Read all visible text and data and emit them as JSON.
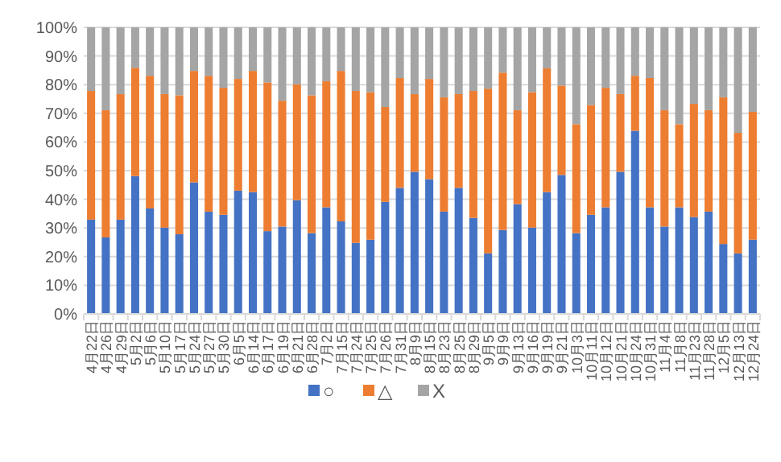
{
  "chart_data": {
    "type": "bar",
    "stacked": true,
    "grid": "y",
    "legend": "bottom",
    "categories": [
      "4月22日",
      "4月26日",
      "4月29日",
      "5月2日",
      "5月6日",
      "5月10日",
      "5月17日",
      "5月24日",
      "5月27日",
      "5月30日",
      "6月5日",
      "6月14日",
      "6月17日",
      "6月19日",
      "6月21日",
      "6月28日",
      "7月2日",
      "7月15日",
      "7月24日",
      "7月25日",
      "7月26日",
      "7月31日",
      "8月9日",
      "8月15日",
      "8月23日",
      "8月25日",
      "8月29日",
      "9月5日",
      "9月9日",
      "9月13日",
      "9月16日",
      "9月19日",
      "9月21日",
      "10月3日",
      "10月11日",
      "10月12日",
      "10月21日",
      "10月24日",
      "10月31日",
      "11月4日",
      "11月8日",
      "11月23日",
      "11月28日",
      "12月5日",
      "12月13日",
      "12月24日"
    ],
    "ylim": [
      0,
      100
    ],
    "yticks": [
      {
        "value": 0,
        "label": "0%"
      },
      {
        "value": 10,
        "label": "10%"
      },
      {
        "value": 20,
        "label": "20%"
      },
      {
        "value": 30,
        "label": "30%"
      },
      {
        "value": 40,
        "label": "40%"
      },
      {
        "value": 50,
        "label": "50%"
      },
      {
        "value": 60,
        "label": "60%"
      },
      {
        "value": 70,
        "label": "70%"
      },
      {
        "value": 80,
        "label": "80%"
      },
      {
        "value": 90,
        "label": "90%"
      },
      {
        "value": 100,
        "label": "100%"
      }
    ],
    "series": [
      {
        "name": "○",
        "color": "#4472c4",
        "values": [
          32.9,
          26.7,
          32.9,
          48.1,
          36.8,
          30.1,
          27.8,
          45.9,
          35.7,
          34.6,
          43.0,
          42.5,
          28.9,
          30.5,
          39.7,
          28.2,
          37.2,
          32.3,
          24.8,
          25.9,
          39.1,
          44.0,
          49.6,
          47.0,
          35.7,
          44.0,
          33.5,
          21.1,
          29.3,
          38.3,
          30.1,
          42.5,
          48.5,
          28.2,
          34.6,
          37.2,
          49.6,
          63.9,
          37.2,
          30.5,
          37.2,
          33.8,
          35.7,
          24.4,
          21.1,
          25.9
        ]
      },
      {
        "name": "△",
        "color": "#ed7d31",
        "values": [
          44.9,
          44.4,
          43.8,
          37.8,
          46.3,
          46.6,
          48.5,
          38.9,
          47.4,
          44.3,
          39.0,
          42.3,
          51.9,
          43.9,
          40.4,
          48.1,
          44.0,
          52.5,
          53.0,
          51.5,
          33.1,
          38.3,
          27.1,
          35.0,
          39.9,
          32.7,
          44.3,
          57.5,
          54.9,
          32.8,
          47.3,
          43.2,
          31.2,
          38.0,
          38.3,
          41.7,
          27.1,
          19.2,
          45.1,
          40.6,
          29.0,
          39.5,
          35.4,
          51.2,
          42.1,
          44.6
        ]
      },
      {
        "name": "X",
        "color": "#a5a5a5",
        "values": [
          22.2,
          28.9,
          23.3,
          14.1,
          16.9,
          23.3,
          23.7,
          15.2,
          16.9,
          21.1,
          18.0,
          15.2,
          19.2,
          25.6,
          19.9,
          23.7,
          18.8,
          15.2,
          22.2,
          22.6,
          27.8,
          17.7,
          23.3,
          18.0,
          24.4,
          23.3,
          22.2,
          21.4,
          15.8,
          28.9,
          22.6,
          14.3,
          20.3,
          33.8,
          27.1,
          21.1,
          23.3,
          16.9,
          17.7,
          28.9,
          33.8,
          26.7,
          28.9,
          24.4,
          36.8,
          29.5
        ]
      }
    ]
  }
}
